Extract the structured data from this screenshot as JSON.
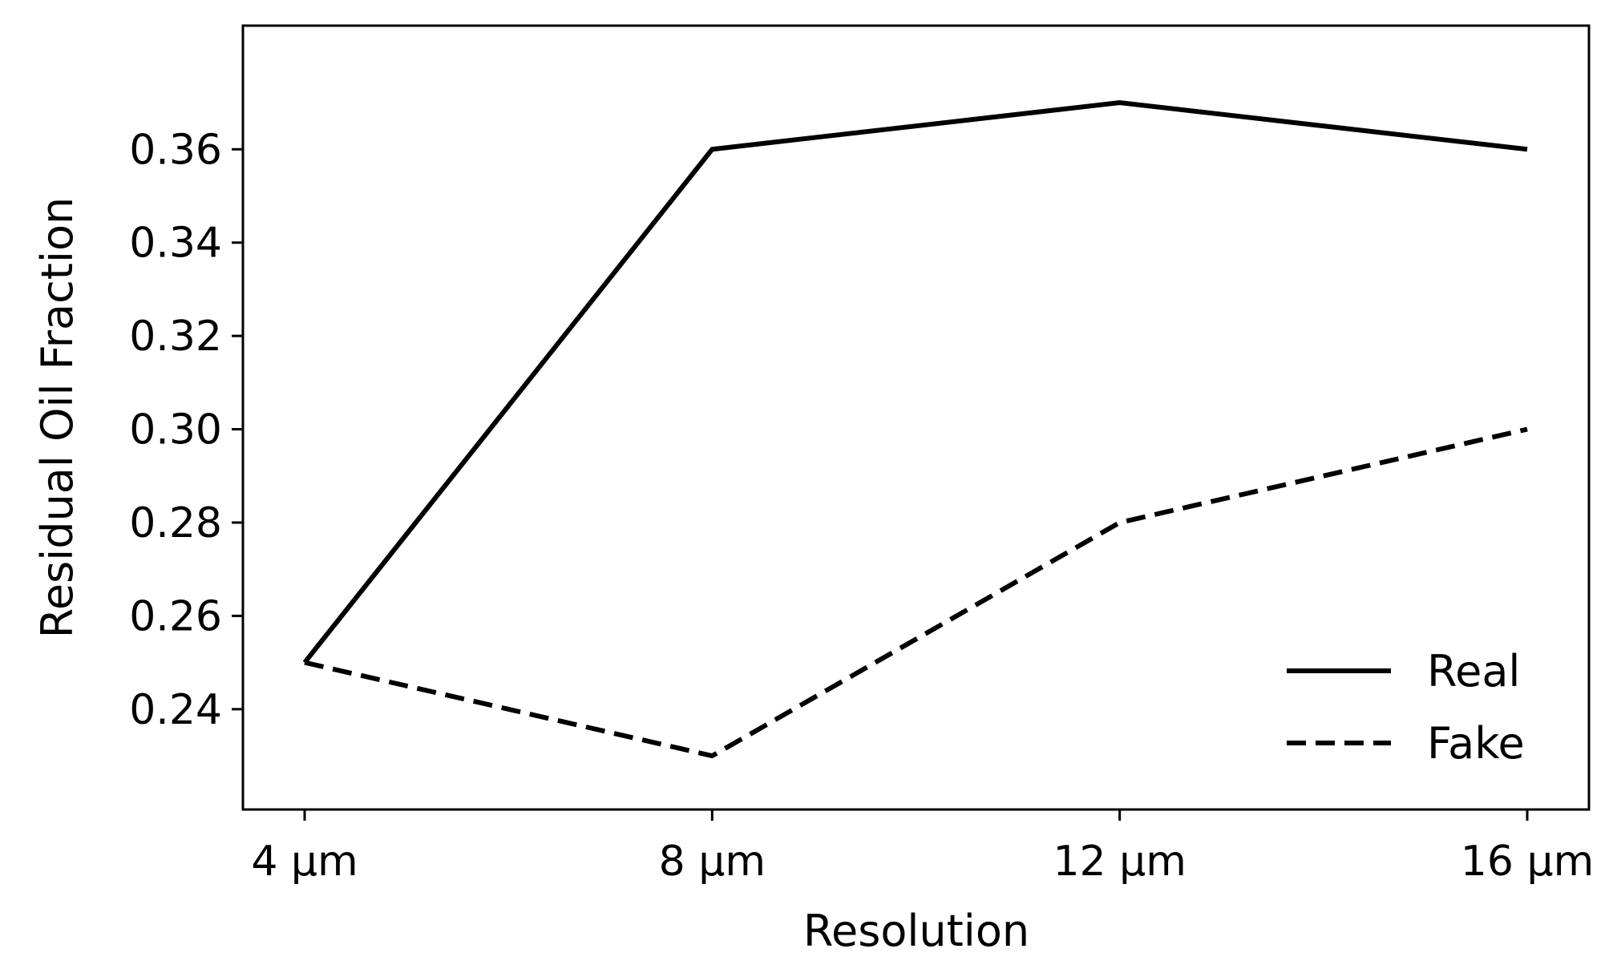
{
  "chart_data": {
    "type": "line",
    "categories": [
      "4 µm",
      "8 µm",
      "12 µm",
      "16 µm"
    ],
    "series": [
      {
        "name": "Real",
        "values": [
          0.25,
          0.36,
          0.37,
          0.36
        ],
        "style": "solid",
        "color": "#000000"
      },
      {
        "name": "Fake",
        "values": [
          0.25,
          0.23,
          0.28,
          0.3
        ],
        "style": "dashed",
        "color": "#000000"
      }
    ],
    "xlabel": "Resolution",
    "ylabel": "Residual Oil Fraction",
    "ylim": [
      0.2185,
      0.3865
    ],
    "yticks": [
      0.24,
      0.26,
      0.28,
      0.3,
      0.32,
      0.34,
      0.36
    ],
    "ytick_labels": [
      "0.24",
      "0.26",
      "0.28",
      "0.30",
      "0.32",
      "0.34",
      "0.36"
    ],
    "grid": false,
    "legend_position": "lower-right"
  }
}
